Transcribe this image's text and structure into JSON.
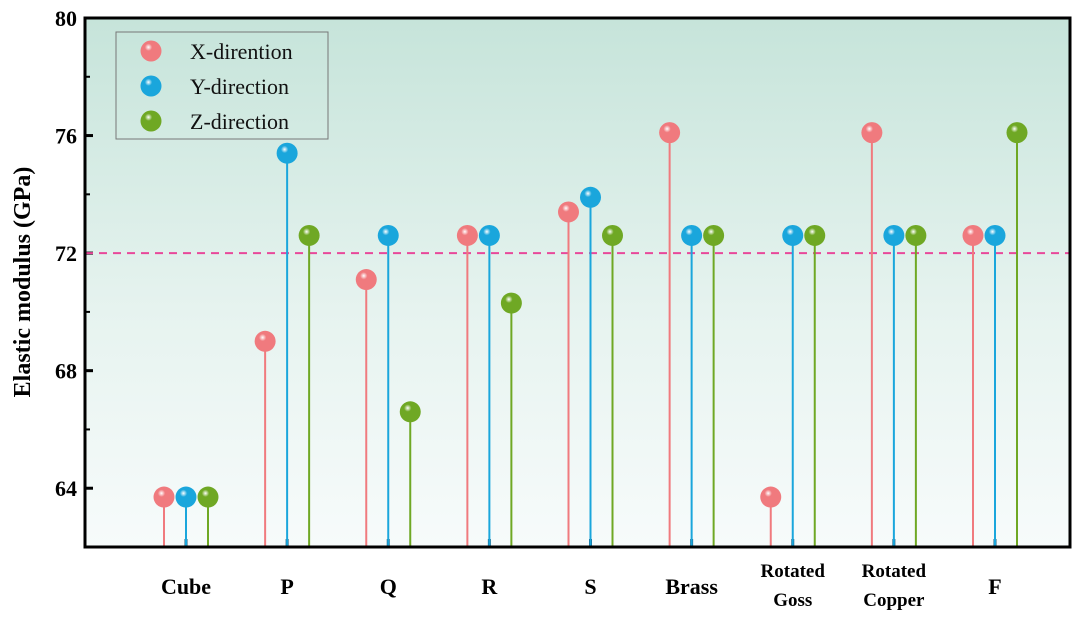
{
  "chart_data": {
    "type": "scatter",
    "subtype": "lollipop",
    "title": "",
    "xlabel": "",
    "ylabel": "Elastic modulus (GPa)",
    "ylim": [
      62,
      80
    ],
    "yticks": [
      64,
      68,
      72,
      76,
      80
    ],
    "reference_line": {
      "value": 72,
      "style": "dashed",
      "color": "#e8489a"
    },
    "categories": [
      [
        "Cube"
      ],
      [
        "P"
      ],
      [
        "Q"
      ],
      [
        "R"
      ],
      [
        "S"
      ],
      [
        "Brass"
      ],
      [
        "Rotated",
        "Goss"
      ],
      [
        "Rotated",
        "Copper"
      ],
      [
        "F"
      ]
    ],
    "series": [
      {
        "name": "X-dirention",
        "color": "#f07a7e",
        "values": [
          63.7,
          69.0,
          71.1,
          72.6,
          73.4,
          76.1,
          63.7,
          76.1,
          72.6
        ]
      },
      {
        "name": "Y-direction",
        "color": "#1aa6dc",
        "values": [
          63.7,
          75.4,
          72.6,
          72.6,
          73.9,
          72.6,
          72.6,
          72.6,
          72.6
        ]
      },
      {
        "name": "Z-direction",
        "color": "#6fa824",
        "values": [
          63.7,
          72.6,
          66.6,
          70.3,
          72.6,
          72.6,
          72.6,
          72.6,
          76.1
        ]
      }
    ],
    "legend_position": "top-left",
    "grid": false
  }
}
